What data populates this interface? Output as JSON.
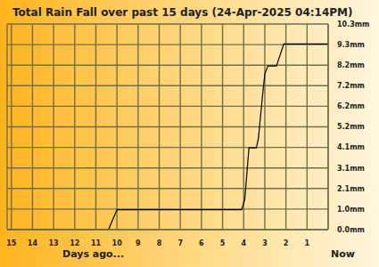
{
  "chart_data": {
    "type": "line",
    "title": "Total Rain Fall over past 15 days (24-Apr-2025 04:14PM)",
    "x_label": "Days ago...",
    "x_end_label": "Now",
    "x": [
      15.2,
      10.4,
      10.0,
      4.1,
      3.95,
      3.75,
      3.4,
      3.3,
      3.1,
      3.0,
      2.85,
      2.45,
      2.1,
      0
    ],
    "values": [
      0,
      0,
      1.0,
      1.0,
      1.5,
      4.1,
      4.1,
      4.6,
      6.8,
      7.8,
      8.2,
      8.2,
      9.3,
      9.3
    ],
    "color": "#000000",
    "marker": "none",
    "line_style": "solid",
    "xlim": [
      0,
      15.2
    ],
    "xticks": [
      15,
      14,
      13,
      12,
      11,
      10,
      9,
      8,
      7,
      6,
      5,
      4,
      3,
      2,
      1
    ],
    "ylim": [
      0,
      10.3
    ],
    "yticks": [
      {
        "value": 0,
        "label": "0.0mm"
      },
      {
        "value": 1.03,
        "label": "1.0mm"
      },
      {
        "value": 2.06,
        "label": "2.1mm"
      },
      {
        "value": 3.09,
        "label": "3.1mm"
      },
      {
        "value": 4.12,
        "label": "4.1mm"
      },
      {
        "value": 5.15,
        "label": "5.2mm"
      },
      {
        "value": 6.18,
        "label": "6.2mm"
      },
      {
        "value": 7.21,
        "label": "7.2mm"
      },
      {
        "value": 8.24,
        "label": "8.2mm"
      },
      {
        "value": 9.27,
        "label": "9.3mm"
      },
      {
        "value": 10.3,
        "label": "10.3mm"
      }
    ],
    "grid": true
  }
}
